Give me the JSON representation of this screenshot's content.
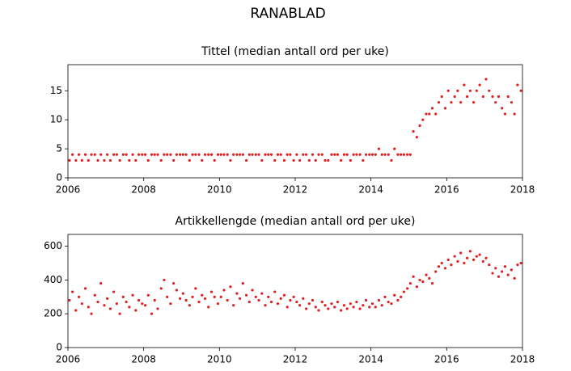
{
  "title": "RANABLAD",
  "chart_data": [
    {
      "type": "scatter",
      "title": "Tittel (median antall ord per uke)",
      "color": "#e02020",
      "xlim": [
        2006,
        2018
      ],
      "xticks": [
        2006,
        2008,
        2010,
        2012,
        2014,
        2016,
        2018
      ],
      "ylim": [
        0,
        19.5
      ],
      "yticks": [
        0,
        5,
        10,
        15
      ],
      "x": [
        2006.04,
        2006.12,
        2006.21,
        2006.29,
        2006.37,
        2006.46,
        2006.54,
        2006.62,
        2006.71,
        2006.79,
        2006.87,
        2006.96,
        2007.04,
        2007.12,
        2007.21,
        2007.29,
        2007.37,
        2007.46,
        2007.54,
        2007.62,
        2007.71,
        2007.79,
        2007.87,
        2007.96,
        2008.04,
        2008.12,
        2008.21,
        2008.29,
        2008.37,
        2008.46,
        2008.54,
        2008.62,
        2008.71,
        2008.79,
        2008.87,
        2008.96,
        2009.04,
        2009.12,
        2009.21,
        2009.29,
        2009.37,
        2009.46,
        2009.54,
        2009.62,
        2009.71,
        2009.79,
        2009.87,
        2009.96,
        2010.04,
        2010.12,
        2010.21,
        2010.29,
        2010.37,
        2010.46,
        2010.54,
        2010.62,
        2010.71,
        2010.79,
        2010.87,
        2010.96,
        2011.04,
        2011.12,
        2011.21,
        2011.29,
        2011.37,
        2011.46,
        2011.54,
        2011.62,
        2011.71,
        2011.79,
        2011.87,
        2011.96,
        2012.04,
        2012.12,
        2012.21,
        2012.29,
        2012.37,
        2012.46,
        2012.54,
        2012.62,
        2012.71,
        2012.79,
        2012.87,
        2012.96,
        2013.04,
        2013.12,
        2013.21,
        2013.29,
        2013.37,
        2013.46,
        2013.54,
        2013.62,
        2013.71,
        2013.79,
        2013.87,
        2013.96,
        2014.04,
        2014.12,
        2014.21,
        2014.29,
        2014.37,
        2014.46,
        2014.54,
        2014.62,
        2014.71,
        2014.79,
        2014.87,
        2014.96,
        2015.04,
        2015.12,
        2015.21,
        2015.29,
        2015.37,
        2015.46,
        2015.54,
        2015.62,
        2015.71,
        2015.79,
        2015.87,
        2015.96,
        2016.04,
        2016.12,
        2016.21,
        2016.29,
        2016.37,
        2016.46,
        2016.54,
        2016.62,
        2016.71,
        2016.79,
        2016.87,
        2016.96,
        2017.04,
        2017.12,
        2017.21,
        2017.29,
        2017.37,
        2017.46,
        2017.54,
        2017.62,
        2017.71,
        2017.79,
        2017.87,
        2017.96
      ],
      "values": [
        3,
        4,
        3,
        4,
        3,
        4,
        3,
        4,
        4,
        3,
        4,
        3,
        4,
        3,
        4,
        4,
        3,
        4,
        4,
        3,
        4,
        3,
        4,
        4,
        4,
        3,
        4,
        4,
        4,
        3,
        4,
        4,
        4,
        3,
        4,
        4,
        4,
        4,
        3,
        4,
        4,
        4,
        3,
        4,
        4,
        4,
        3,
        4,
        4,
        4,
        4,
        3,
        4,
        4,
        4,
        4,
        3,
        4,
        4,
        4,
        4,
        3,
        4,
        4,
        4,
        3,
        4,
        4,
        3,
        4,
        4,
        3,
        4,
        3,
        4,
        4,
        3,
        4,
        3,
        4,
        4,
        3,
        3,
        4,
        4,
        4,
        3,
        4,
        4,
        3,
        4,
        4,
        4,
        3,
        4,
        4,
        4,
        4,
        5,
        4,
        4,
        4,
        3,
        5,
        4,
        4,
        4,
        4,
        4,
        8,
        7,
        9,
        10,
        11,
        11,
        12,
        11,
        13,
        14,
        12,
        15,
        13,
        14,
        15,
        13,
        16,
        14,
        15,
        13,
        15,
        16,
        14,
        17,
        15,
        14,
        13,
        14,
        12,
        11,
        14,
        13,
        11,
        16,
        15
      ]
    },
    {
      "type": "scatter",
      "title": "Artikkellengde (median antall ord per uke)",
      "color": "#e02020",
      "xlim": [
        2006,
        2018
      ],
      "xticks": [
        2006,
        2008,
        2010,
        2012,
        2014,
        2016,
        2018
      ],
      "ylim": [
        0,
        670
      ],
      "yticks": [
        0,
        200,
        400,
        600
      ],
      "x": [
        2006.04,
        2006.12,
        2006.21,
        2006.29,
        2006.37,
        2006.46,
        2006.54,
        2006.62,
        2006.71,
        2006.79,
        2006.87,
        2006.96,
        2007.04,
        2007.12,
        2007.21,
        2007.29,
        2007.37,
        2007.46,
        2007.54,
        2007.62,
        2007.71,
        2007.79,
        2007.87,
        2007.96,
        2008.04,
        2008.12,
        2008.21,
        2008.29,
        2008.37,
        2008.46,
        2008.54,
        2008.62,
        2008.71,
        2008.79,
        2008.87,
        2008.96,
        2009.04,
        2009.12,
        2009.21,
        2009.29,
        2009.37,
        2009.46,
        2009.54,
        2009.62,
        2009.71,
        2009.79,
        2009.87,
        2009.96,
        2010.04,
        2010.12,
        2010.21,
        2010.29,
        2010.37,
        2010.46,
        2010.54,
        2010.62,
        2010.71,
        2010.79,
        2010.87,
        2010.96,
        2011.04,
        2011.12,
        2011.21,
        2011.29,
        2011.37,
        2011.46,
        2011.54,
        2011.62,
        2011.71,
        2011.79,
        2011.87,
        2011.96,
        2012.04,
        2012.12,
        2012.21,
        2012.29,
        2012.37,
        2012.46,
        2012.54,
        2012.62,
        2012.71,
        2012.79,
        2012.87,
        2012.96,
        2013.04,
        2013.12,
        2013.21,
        2013.29,
        2013.37,
        2013.46,
        2013.54,
        2013.62,
        2013.71,
        2013.79,
        2013.87,
        2013.96,
        2014.04,
        2014.12,
        2014.21,
        2014.29,
        2014.37,
        2014.46,
        2014.54,
        2014.62,
        2014.71,
        2014.79,
        2014.87,
        2014.96,
        2015.04,
        2015.12,
        2015.21,
        2015.29,
        2015.37,
        2015.46,
        2015.54,
        2015.62,
        2015.71,
        2015.79,
        2015.87,
        2015.96,
        2016.04,
        2016.12,
        2016.21,
        2016.29,
        2016.37,
        2016.46,
        2016.54,
        2016.62,
        2016.71,
        2016.79,
        2016.87,
        2016.96,
        2017.04,
        2017.12,
        2017.21,
        2017.29,
        2017.37,
        2017.46,
        2017.54,
        2017.62,
        2017.71,
        2017.79,
        2017.87,
        2017.96
      ],
      "values": [
        280,
        330,
        220,
        300,
        260,
        350,
        240,
        200,
        310,
        270,
        380,
        250,
        290,
        230,
        330,
        260,
        200,
        300,
        270,
        240,
        310,
        220,
        280,
        260,
        250,
        310,
        200,
        280,
        230,
        350,
        400,
        300,
        260,
        380,
        340,
        290,
        320,
        280,
        250,
        300,
        350,
        270,
        310,
        290,
        240,
        330,
        300,
        260,
        300,
        340,
        280,
        360,
        250,
        320,
        290,
        380,
        310,
        270,
        340,
        300,
        280,
        320,
        250,
        300,
        270,
        330,
        260,
        290,
        310,
        240,
        280,
        300,
        270,
        250,
        290,
        230,
        260,
        280,
        240,
        220,
        270,
        250,
        230,
        260,
        240,
        270,
        220,
        250,
        230,
        260,
        240,
        270,
        230,
        250,
        280,
        240,
        260,
        240,
        280,
        250,
        300,
        270,
        260,
        310,
        280,
        300,
        330,
        350,
        380,
        420,
        360,
        400,
        390,
        430,
        410,
        380,
        450,
        480,
        500,
        470,
        520,
        490,
        540,
        510,
        560,
        500,
        530,
        570,
        520,
        540,
        550,
        510,
        530,
        490,
        440,
        470,
        420,
        450,
        480,
        430,
        460,
        410,
        490,
        500
      ]
    }
  ]
}
